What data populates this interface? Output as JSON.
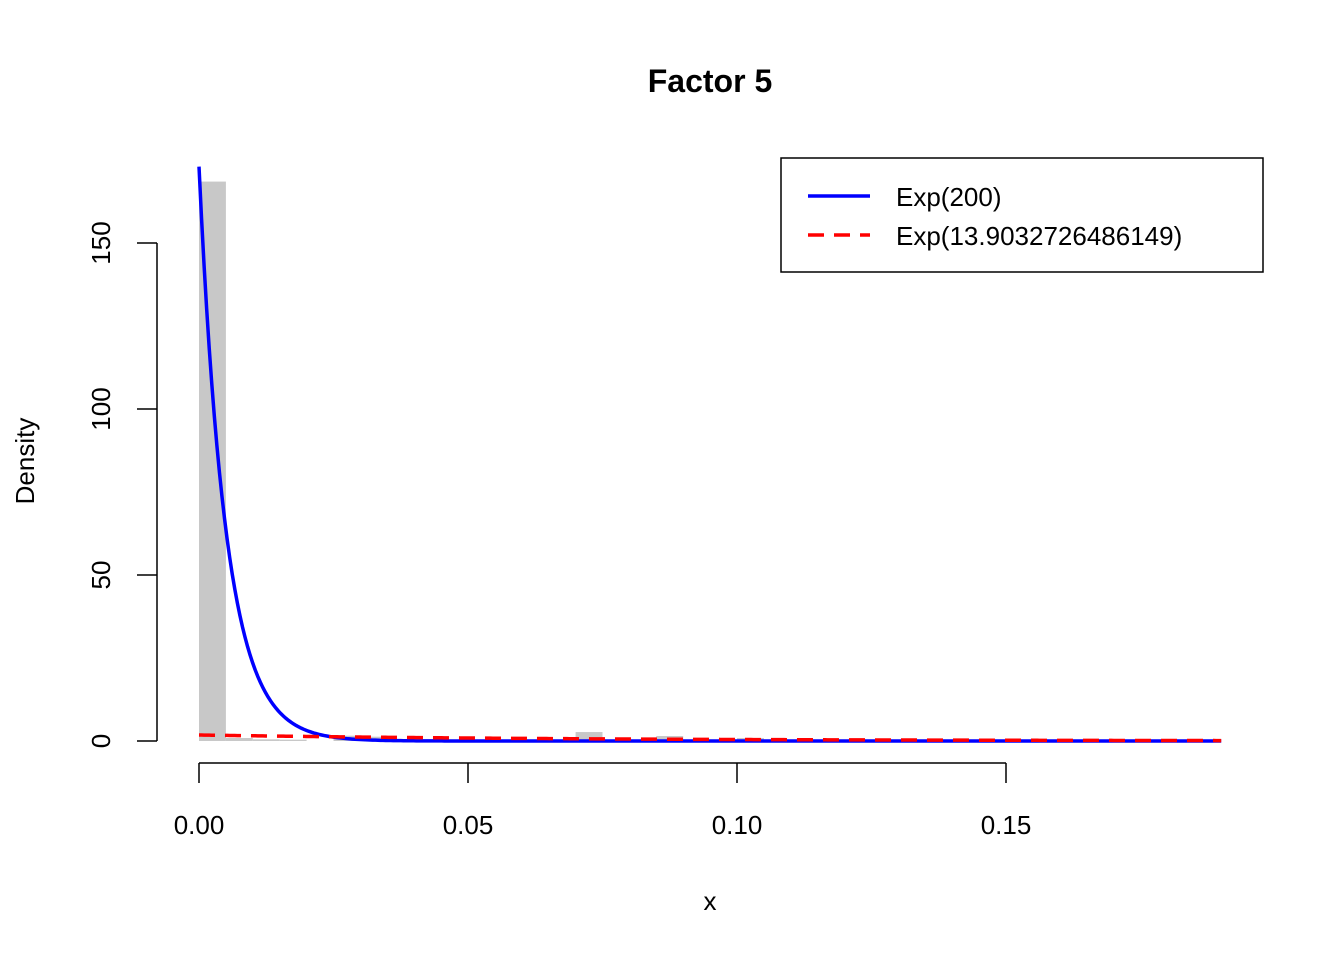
{
  "chart_data": {
    "type": "histogram",
    "title": "Factor 5",
    "xlabel": "x",
    "ylabel": "Density",
    "xlim": [
      0,
      0.19
    ],
    "ylim": [
      0,
      175
    ],
    "x_ticks": [
      0.0,
      0.05,
      0.1,
      0.15
    ],
    "x_tick_labels": [
      "0.00",
      "0.05",
      "0.10",
      "0.15"
    ],
    "y_ticks": [
      0,
      50,
      100,
      150
    ],
    "y_tick_labels": [
      "0",
      "50",
      "100",
      "150"
    ],
    "grid": false,
    "histogram": {
      "color": "#c8c8c8",
      "bin_width": 0.005,
      "bins": [
        {
          "x0": 0.0,
          "x1": 0.005,
          "density": 168.5
        },
        {
          "x0": 0.005,
          "x1": 0.01,
          "density": 0.9
        },
        {
          "x0": 0.01,
          "x1": 0.015,
          "density": 0.5
        },
        {
          "x0": 0.015,
          "x1": 0.02,
          "density": 0.4
        },
        {
          "x0": 0.025,
          "x1": 0.03,
          "density": 1.6
        },
        {
          "x0": 0.03,
          "x1": 0.035,
          "density": 1.3
        },
        {
          "x0": 0.07,
          "x1": 0.075,
          "density": 2.7
        },
        {
          "x0": 0.085,
          "x1": 0.09,
          "density": 1.5
        },
        {
          "x0": 0.1,
          "x1": 0.105,
          "density": 0.9
        }
      ]
    },
    "series": [
      {
        "name": "Exp(200)",
        "rate": 200,
        "color": "#0000ff",
        "style": "solid",
        "curve_scale": 0.865
      },
      {
        "name": "Exp(13.9032726486149)",
        "rate": 13.9032726486149,
        "color": "#ff0000",
        "style": "dashed",
        "curve_scale": 0.13
      }
    ],
    "legend": {
      "placement": "top-right",
      "entries": [
        "Exp(200)",
        "Exp(13.9032726486149)"
      ]
    }
  }
}
